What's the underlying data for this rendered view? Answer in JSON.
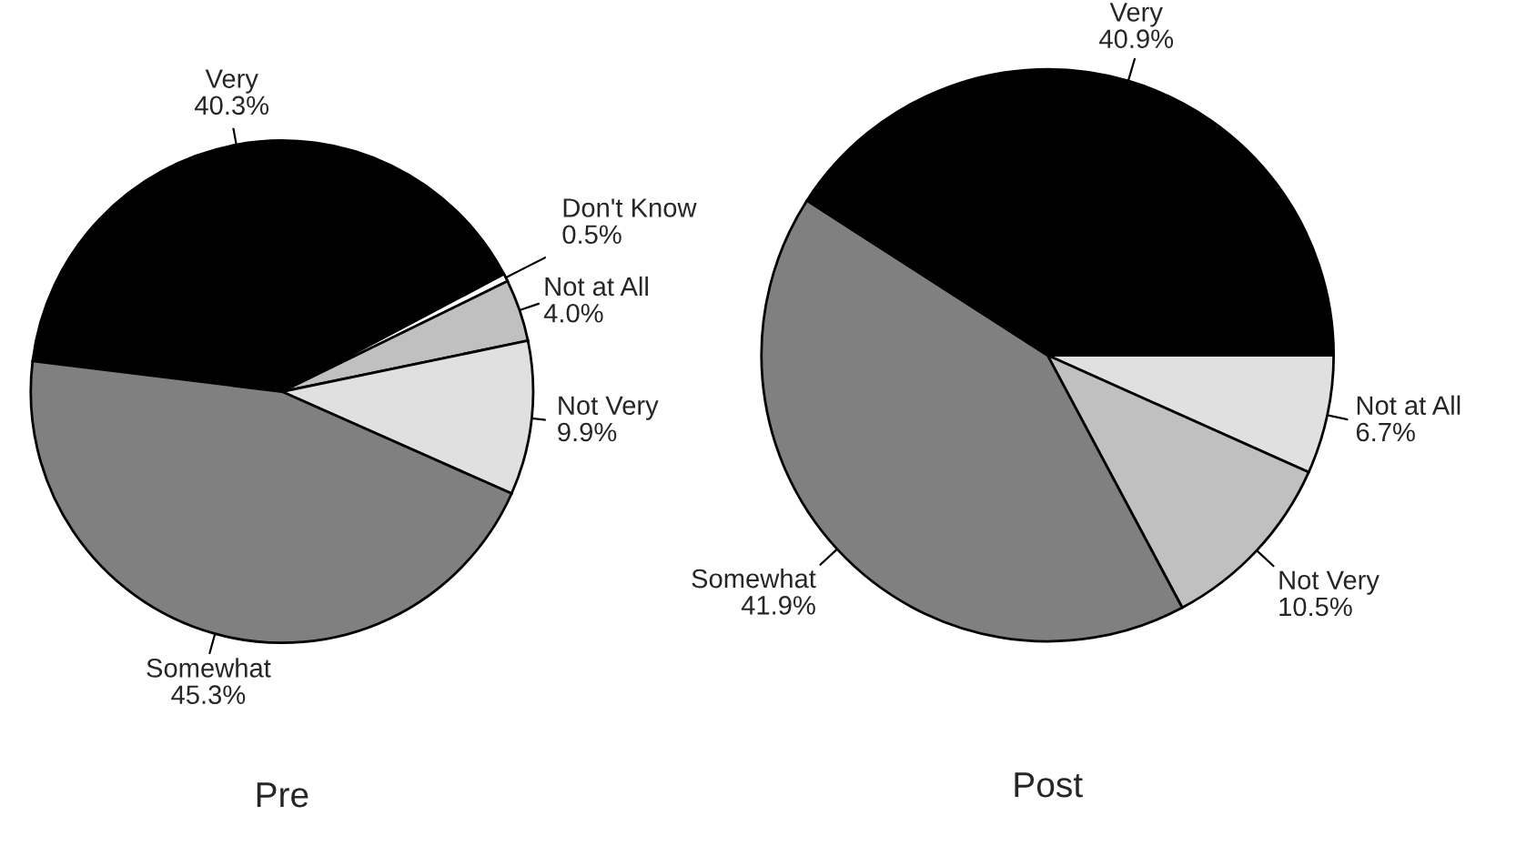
{
  "chart_data": [
    {
      "type": "pie",
      "title": "Pre",
      "categories": [
        "Very",
        "Don't Know",
        "Not at All",
        "Not Very",
        "Somewhat"
      ],
      "values": [
        40.3,
        0.5,
        4.0,
        9.9,
        45.3
      ],
      "colors": [
        "#000000",
        "#ffffff",
        "#c0c0c0",
        "#e0e0e0",
        "#808080"
      ],
      "value_labels": [
        "40.3%",
        "0.5%",
        "4.0%",
        "9.9%",
        "45.3%"
      ]
    },
    {
      "type": "pie",
      "title": "Post",
      "categories": [
        "Not at All",
        "Not Very",
        "Somewhat",
        "Very"
      ],
      "values": [
        6.7,
        10.5,
        41.9,
        40.9
      ],
      "colors": [
        "#e0e0e0",
        "#c0c0c0",
        "#808080",
        "#000000"
      ],
      "value_labels": [
        "6.7%",
        "10.5%",
        "41.9%",
        "40.9%"
      ]
    }
  ]
}
